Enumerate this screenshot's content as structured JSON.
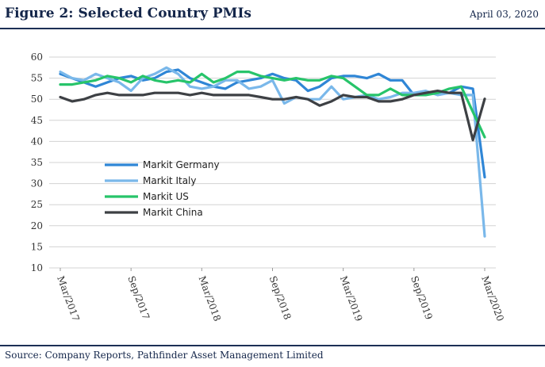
{
  "header": {
    "title": "Figure 2: Selected Country PMIs",
    "date": "April 03, 2020"
  },
  "footer": {
    "source": "Source: Company Reports, Pathfinder Asset Management Limited"
  },
  "colors": {
    "germany": "#2f86d6",
    "italy": "#7ab8ea",
    "us": "#27c46a",
    "china": "#3d4044",
    "frame": "#1c2f55",
    "grid": "#d3d3d3"
  },
  "chart_data": {
    "type": "line",
    "title": "",
    "xlabel": "",
    "ylabel": "",
    "ylim": [
      10,
      60
    ],
    "yticks": [
      10,
      15,
      20,
      25,
      30,
      35,
      40,
      45,
      50,
      55,
      60
    ],
    "grid": "horizontal",
    "legend_position": "left",
    "x_tick_labels": [
      "Mar/2017",
      "Sep/2017",
      "Mar/2018",
      "Sep/2018",
      "Mar/2019",
      "Sep/2019",
      "Mar/2020"
    ],
    "x_tick_index": [
      0,
      6,
      12,
      18,
      24,
      30,
      36
    ],
    "x": [
      "Mar/2017",
      "Apr/2017",
      "May/2017",
      "Jun/2017",
      "Jul/2017",
      "Aug/2017",
      "Sep/2017",
      "Oct/2017",
      "Nov/2017",
      "Dec/2017",
      "Jan/2018",
      "Feb/2018",
      "Mar/2018",
      "Apr/2018",
      "May/2018",
      "Jun/2018",
      "Jul/2018",
      "Aug/2018",
      "Sep/2018",
      "Oct/2018",
      "Nov/2018",
      "Dec/2018",
      "Jan/2019",
      "Feb/2019",
      "Mar/2019",
      "Apr/2019",
      "May/2019",
      "Jun/2019",
      "Jul/2019",
      "Aug/2019",
      "Sep/2019",
      "Oct/2019",
      "Nov/2019",
      "Dec/2019",
      "Jan/2020",
      "Feb/2020",
      "Mar/2020"
    ],
    "series": [
      {
        "name": "Markit Germany",
        "key": "germany",
        "values": [
          56.0,
          55.0,
          54.0,
          53.0,
          54.0,
          55.0,
          55.5,
          54.5,
          55.0,
          56.5,
          57.0,
          55.0,
          54.0,
          53.0,
          52.5,
          54.0,
          54.5,
          55.0,
          56.0,
          55.0,
          54.5,
          52.0,
          53.0,
          55.0,
          55.5,
          55.5,
          55.0,
          56.0,
          54.5,
          54.5,
          51.0,
          51.5,
          51.5,
          51.5,
          53.0,
          52.5,
          31.5
        ]
      },
      {
        "name": "Markit Italy",
        "key": "italy",
        "values": [
          56.5,
          55.0,
          54.5,
          56.0,
          55.0,
          54.0,
          52.0,
          55.0,
          56.0,
          57.5,
          56.0,
          53.0,
          52.5,
          53.0,
          54.5,
          54.5,
          52.5,
          53.0,
          54.5,
          49.0,
          50.5,
          50.0,
          50.0,
          53.0,
          50.0,
          50.5,
          51.0,
          50.0,
          50.5,
          51.5,
          51.5,
          52.0,
          51.0,
          51.5,
          51.0,
          51.0,
          17.5
        ]
      },
      {
        "name": "Markit US",
        "key": "us",
        "values": [
          53.5,
          53.5,
          54.0,
          54.5,
          55.5,
          55.0,
          54.0,
          55.5,
          54.5,
          54.0,
          54.5,
          54.0,
          56.0,
          54.0,
          55.0,
          56.5,
          56.5,
          55.5,
          55.0,
          54.5,
          55.0,
          54.5,
          54.5,
          55.5,
          55.0,
          53.0,
          51.0,
          51.0,
          52.5,
          51.0,
          51.0,
          51.0,
          51.5,
          52.5,
          53.0,
          47.0,
          41.0
        ]
      },
      {
        "name": "Markit China",
        "key": "china",
        "values": [
          50.5,
          49.5,
          50.0,
          51.0,
          51.5,
          51.0,
          51.0,
          51.0,
          51.5,
          51.5,
          51.5,
          51.0,
          51.5,
          51.0,
          51.0,
          51.0,
          51.0,
          50.5,
          50.0,
          50.0,
          50.5,
          50.0,
          48.5,
          49.5,
          51.0,
          50.5,
          50.5,
          49.5,
          49.5,
          50.0,
          51.0,
          51.5,
          52.0,
          51.5,
          51.5,
          40.3,
          50.1
        ]
      }
    ]
  }
}
